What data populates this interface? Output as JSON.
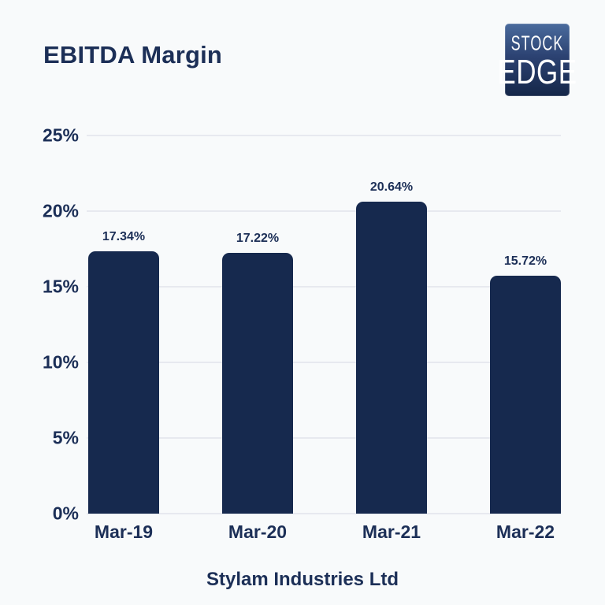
{
  "page": {
    "background_color": "#F8FAFB",
    "text_color": "#1C2F57"
  },
  "header": {
    "title": "EBITDA Margin",
    "logo": {
      "line1": "STOCK",
      "line2": "EDGE",
      "bg_top_color": "#4A6B9D",
      "bg_bottom_color": "#152749",
      "text_color": "#FFFFFF"
    }
  },
  "chart_data": {
    "type": "bar",
    "title": "EBITDA Margin",
    "categories": [
      "Mar-19",
      "Mar-20",
      "Mar-21",
      "Mar-22"
    ],
    "values": [
      17.34,
      17.22,
      20.64,
      15.72
    ],
    "value_labels": [
      "17.34%",
      "17.22%",
      "20.64%",
      "15.72%"
    ],
    "xlabel": "",
    "ylabel": "",
    "ylim": [
      0,
      25
    ],
    "ytick_values": [
      0,
      5,
      10,
      15,
      20,
      25
    ],
    "ytick_labels": [
      "0%",
      "5%",
      "10%",
      "15%",
      "20%",
      "25%"
    ],
    "grid": true,
    "legend": false,
    "bar_color": "#16294E",
    "gridline_color": "#E7E9EF",
    "caption": "Stylam Industries Ltd"
  },
  "footer": {
    "company_name": "Stylam Industries Ltd"
  }
}
